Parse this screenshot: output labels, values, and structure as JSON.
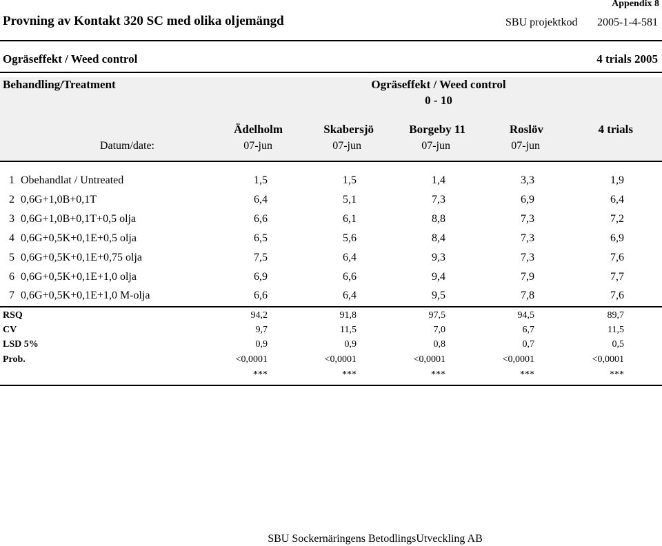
{
  "header": {
    "appendix": "Appendix 8",
    "title": "Provning av Kontakt 320 SC med olika oljemängd",
    "sbu_label": "SBU projektkod",
    "sbu_code": "2005-1-4-581",
    "section_title": "Ogräseffekt / Weed control",
    "trials": "4 trials 2005"
  },
  "table": {
    "treatment_header": "Behandling/Treatment",
    "group_header": "Ogräseffekt / Weed control",
    "scale": "0 - 10",
    "date_label": "Datum/date:",
    "columns": [
      {
        "site": "Ädelholm",
        "date": "07-jun"
      },
      {
        "site": "Skabersjö",
        "date": "07-jun"
      },
      {
        "site": "Borgeby 11",
        "date": "07-jun"
      },
      {
        "site": "Roslöv",
        "date": "07-jun"
      },
      {
        "site": "4 trials",
        "date": ""
      }
    ],
    "rows": [
      {
        "num": "1",
        "name": "Obehandlat / Untreated",
        "values": [
          "1,5",
          "1,5",
          "1,4",
          "3,3",
          "1,9"
        ]
      },
      {
        "num": "2",
        "name": "0,6G+1,0B+0,1T",
        "values": [
          "6,4",
          "5,1",
          "7,3",
          "6,9",
          "6,4"
        ]
      },
      {
        "num": "3",
        "name": "0,6G+1,0B+0,1T+0,5 olja",
        "values": [
          "6,6",
          "6,1",
          "8,8",
          "7,3",
          "7,2"
        ]
      },
      {
        "num": "4",
        "name": "0,6G+0,5K+0,1E+0,5 olja",
        "values": [
          "6,5",
          "5,6",
          "8,4",
          "7,3",
          "6,9"
        ]
      },
      {
        "num": "5",
        "name": "0,6G+0,5K+0,1E+0,75 olja",
        "values": [
          "7,5",
          "6,4",
          "9,3",
          "7,3",
          "7,6"
        ]
      },
      {
        "num": "6",
        "name": "0,6G+0,5K+0,1E+1,0 olja",
        "values": [
          "6,9",
          "6,6",
          "9,4",
          "7,9",
          "7,7"
        ]
      },
      {
        "num": "7",
        "name": "0,6G+0,5K+0,1E+1,0 M-olja",
        "values": [
          "6,6",
          "6,4",
          "9,5",
          "7,8",
          "7,6"
        ]
      }
    ],
    "stats": [
      {
        "label": "RSQ",
        "values": [
          "94,2",
          "91,8",
          "97,5",
          "94,5",
          "89,7"
        ]
      },
      {
        "label": "CV",
        "values": [
          "9,7",
          "11,5",
          "7,0",
          "6,7",
          "11,5"
        ]
      },
      {
        "label": "LSD 5%",
        "values": [
          "0,9",
          "0,9",
          "0,8",
          "0,7",
          "0,5"
        ]
      },
      {
        "label": "Prob.",
        "values": [
          "<0,0001",
          "<0,0001",
          "<0,0001",
          "<0,0001",
          "<0,0001"
        ]
      },
      {
        "label": "",
        "values": [
          "***",
          "***",
          "***",
          "***",
          "***"
        ]
      }
    ]
  },
  "footer": {
    "text": "SBU Sockernäringens BetodlingsUtveckling AB"
  }
}
